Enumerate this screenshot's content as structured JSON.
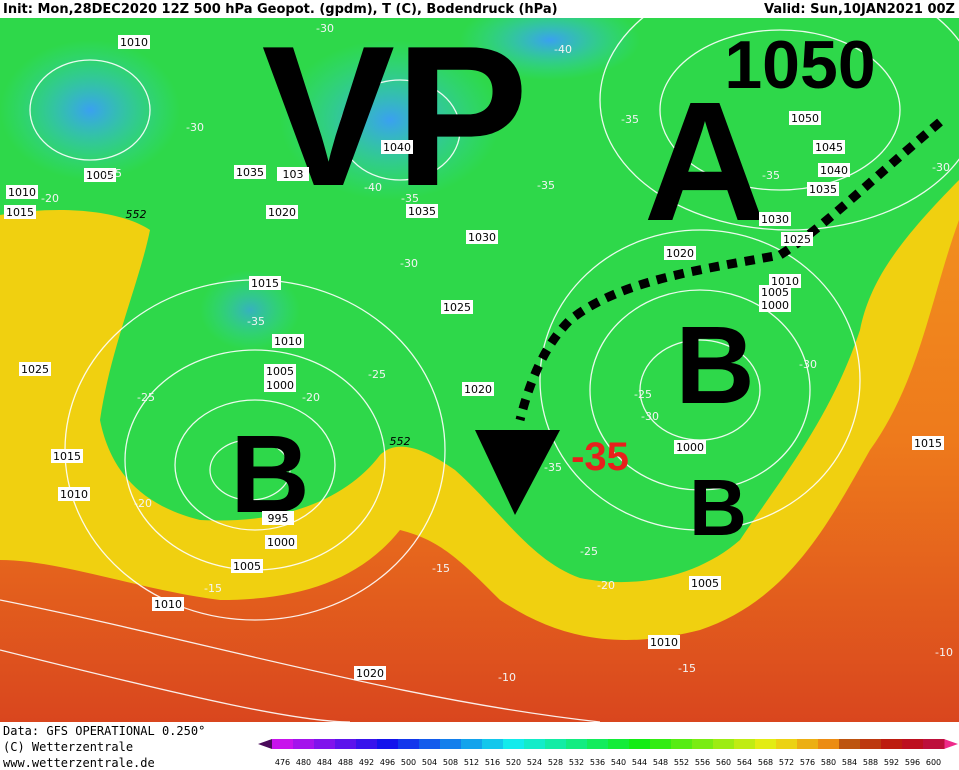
{
  "header": {
    "init": "Init: Mon,28DEC2020 12Z 500 hPa Geopot. (gpdm), T (C), Bodendruck (hPa)",
    "valid": "Valid: Sun,10JAN2021 00Z"
  },
  "annotations": {
    "vp": "VP",
    "high": "A",
    "high_pressure": "1050",
    "low_west": "B",
    "low_central": "B",
    "low_south": "B",
    "temperature": "-35"
  },
  "isobar_labels": [
    "1010",
    "1005",
    "1010",
    "1015",
    "1035",
    "103",
    "1020",
    "1040",
    "1035",
    "1030",
    "1025",
    "1015",
    "1010",
    "1005",
    "1000",
    "1025",
    "1015",
    "1010",
    "995",
    "1000",
    "1005",
    "1010",
    "1020",
    "1020",
    "1050",
    "1045",
    "1040",
    "1035",
    "1030",
    "1025",
    "1020",
    "1010",
    "1005",
    "1000",
    "1000",
    "1005",
    "1010",
    "1015"
  ],
  "temperature_labels": [
    "-30",
    "-40",
    "-30",
    "-25",
    "-20",
    "-40",
    "-35",
    "-35",
    "-35",
    "-35",
    "-30",
    "-30",
    "-35",
    "-25",
    "-20",
    "-25",
    "-20",
    "-15",
    "-15",
    "-25",
    "-20",
    "-25",
    "-30",
    "-35",
    "-30",
    "-10",
    "-15",
    "-10"
  ],
  "height_labels": [
    "552",
    "552"
  ],
  "footer": {
    "data": "Data: GFS OPERATIONAL 0.250°",
    "copyright": "(C) Wetterzentrale",
    "url": "www.wetterzentrale.de"
  },
  "color_scale": [
    476,
    480,
    484,
    488,
    492,
    496,
    500,
    504,
    508,
    512,
    516,
    520,
    524,
    528,
    532,
    536,
    540,
    544,
    548,
    552,
    556,
    560,
    564,
    568,
    572,
    576,
    580,
    584,
    588,
    592,
    596,
    600
  ]
}
